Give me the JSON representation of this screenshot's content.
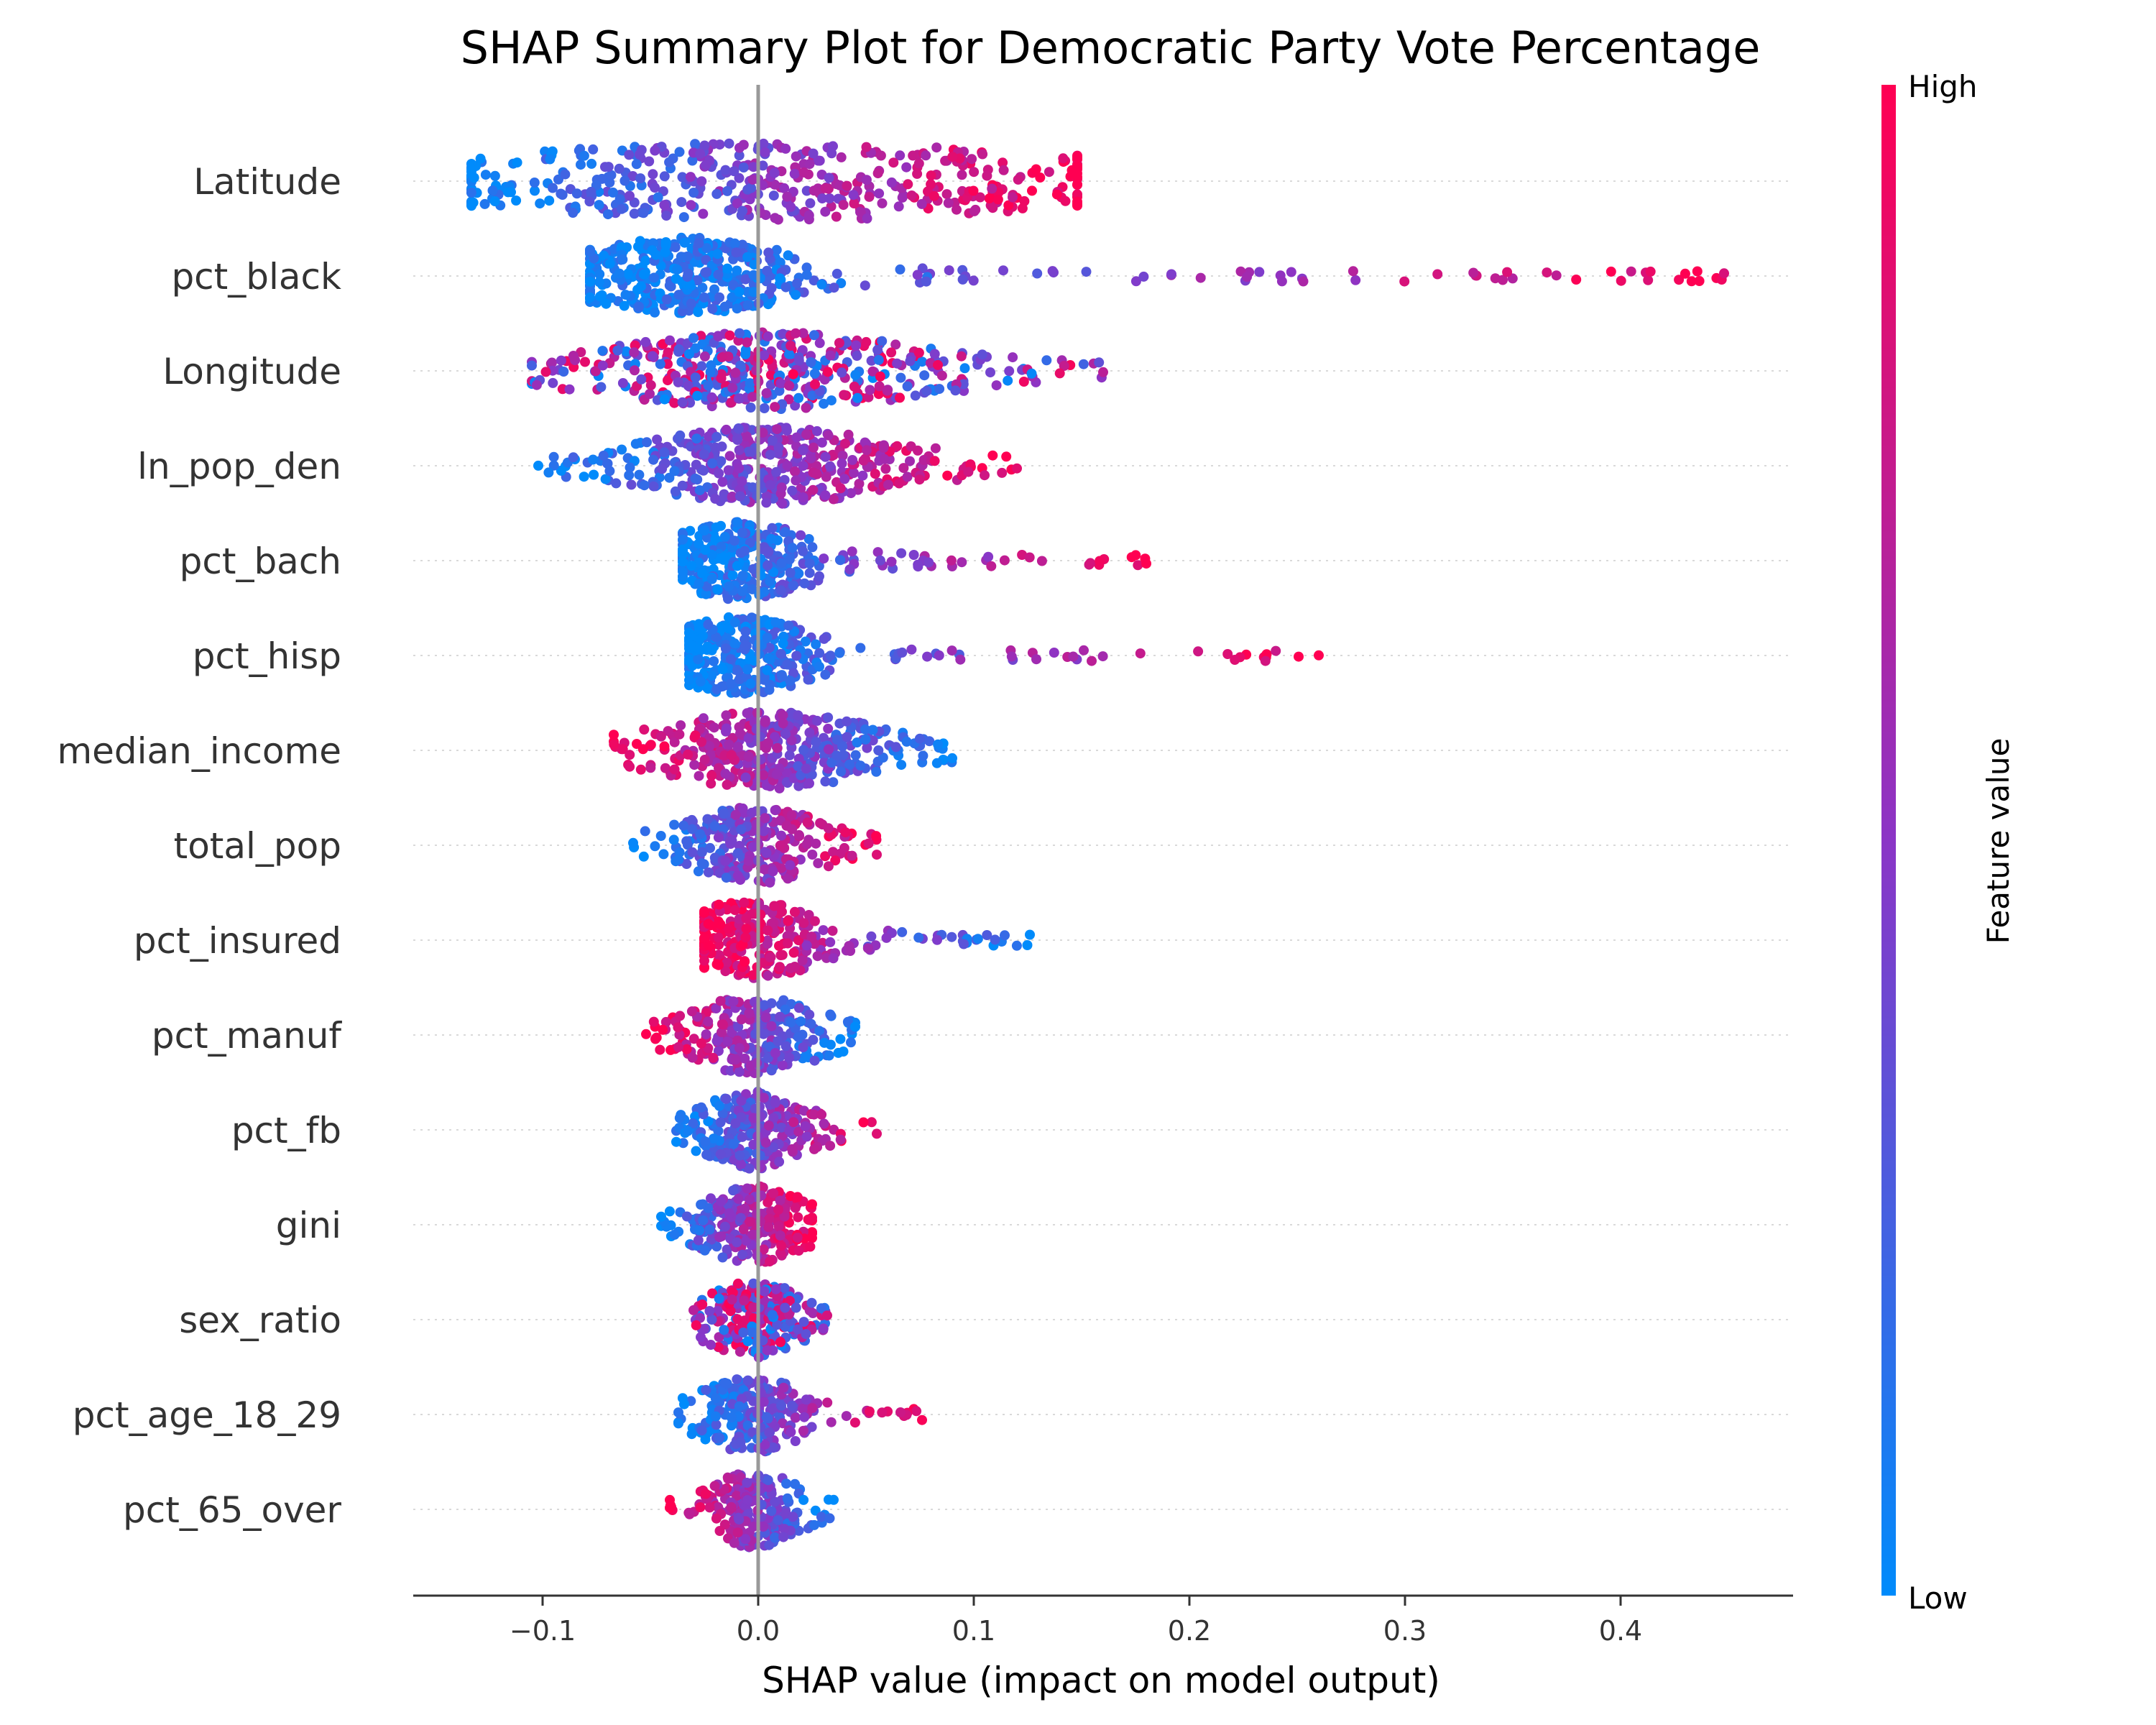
{
  "chart_data": {
    "type": "scatter",
    "title": "SHAP Summary Plot for Democratic Party Vote Percentage",
    "xlabel": "SHAP value (impact on model output)",
    "xlim": [
      -0.16,
      0.48
    ],
    "xticks": [
      "−0.1",
      "0.0",
      "0.1",
      "0.2",
      "0.3",
      "0.4"
    ],
    "xtick_values": [
      -0.1,
      0.0,
      0.1,
      0.2,
      0.3,
      0.4
    ],
    "colorbar": {
      "label": "Feature value",
      "high_label": "High",
      "low_label": "Low",
      "high_color": "#ff0052",
      "low_color": "#008bfb"
    },
    "features": [
      {
        "name": "Latitude",
        "min": -0.133,
        "max": 0.148,
        "peak": 0.01,
        "spread": 0.09,
        "trend": 1,
        "dens": 1.0
      },
      {
        "name": "pct_black",
        "min": -0.078,
        "max": 0.448,
        "peak": -0.035,
        "spread": 0.03,
        "trend": 1,
        "dens": 1.0
      },
      {
        "name": "Longitude",
        "min": -0.105,
        "max": 0.16,
        "peak": 0.005,
        "spread": 0.045,
        "trend": 0,
        "dens": 1.0
      },
      {
        "name": "ln_pop_den",
        "min": -0.102,
        "max": 0.12,
        "peak": 0.005,
        "spread": 0.035,
        "trend": 1,
        "dens": 0.95
      },
      {
        "name": "pct_bach",
        "min": -0.035,
        "max": 0.18,
        "peak": -0.008,
        "spread": 0.02,
        "trend": 1,
        "dens": 0.75
      },
      {
        "name": "pct_hisp",
        "min": -0.032,
        "max": 0.26,
        "peak": -0.008,
        "spread": 0.02,
        "trend": 1,
        "dens": 0.75
      },
      {
        "name": "median_income",
        "min": -0.067,
        "max": 0.09,
        "peak": 0.005,
        "spread": 0.03,
        "trend": -1,
        "dens": 0.85
      },
      {
        "name": "total_pop",
        "min": -0.058,
        "max": 0.055,
        "peak": -0.002,
        "spread": 0.02,
        "trend": 1,
        "dens": 0.6
      },
      {
        "name": "pct_insured",
        "min": -0.025,
        "max": 0.126,
        "peak": -0.004,
        "spread": 0.02,
        "trend": -1,
        "dens": 0.6
      },
      {
        "name": "pct_manuf",
        "min": -0.052,
        "max": 0.045,
        "peak": -0.002,
        "spread": 0.018,
        "trend": -1,
        "dens": 0.55
      },
      {
        "name": "pct_fb",
        "min": -0.038,
        "max": 0.055,
        "peak": -0.002,
        "spread": 0.015,
        "trend": 1,
        "dens": 0.55
      },
      {
        "name": "gini",
        "min": -0.045,
        "max": 0.025,
        "peak": -0.002,
        "spread": 0.015,
        "trend": 1,
        "dens": 0.55
      },
      {
        "name": "sex_ratio",
        "min": -0.03,
        "max": 0.032,
        "peak": -0.002,
        "spread": 0.013,
        "trend": 0,
        "dens": 0.5
      },
      {
        "name": "pct_age_18_29",
        "min": -0.037,
        "max": 0.076,
        "peak": -0.003,
        "spread": 0.014,
        "trend": 1,
        "dens": 0.5
      },
      {
        "name": "pct_65_over",
        "min": -0.041,
        "max": 0.035,
        "peak": -0.002,
        "spread": 0.012,
        "trend": -1,
        "dens": 0.45
      }
    ]
  }
}
